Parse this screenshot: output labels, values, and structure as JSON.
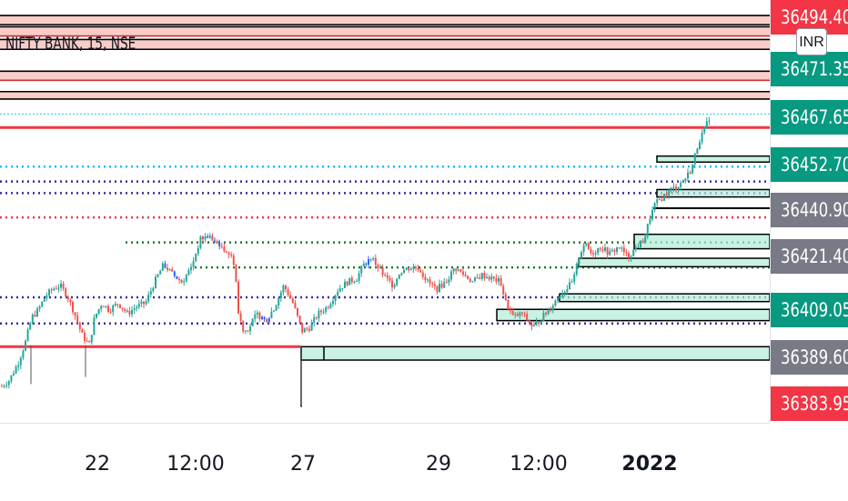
{
  "symbol": "NIFTY BANK, 15, NSE",
  "currency_button": "INR",
  "chart_data": {
    "type": "candlestick",
    "title": "NIFTY BANK, 15, NSE",
    "ylim": [
      36380,
      36500
    ],
    "price_labels": [
      {
        "text": "36494.40",
        "value": 36494.4,
        "color": "#f23645"
      },
      {
        "text": "36471.35",
        "value": 36471.35,
        "color": "#089981"
      },
      {
        "text": "36467.65",
        "value": 36467.65,
        "color": "#089981"
      },
      {
        "text": "36452.70",
        "value": 36452.7,
        "color": "#089981"
      },
      {
        "text": "36440.90",
        "value": 36440.9,
        "color": "#787b86"
      },
      {
        "text": "36421.40",
        "value": 36421.4,
        "color": "#787b86"
      },
      {
        "text": "36409.05",
        "value": 36409.05,
        "color": "#089981"
      },
      {
        "text": "36389.60",
        "value": 36389.6,
        "color": "#787b86"
      },
      {
        "text": "36383.95",
        "value": 36383.95,
        "color": "#f23645"
      }
    ],
    "time_labels": [
      {
        "text": "22",
        "bold": false
      },
      {
        "text": "12:00",
        "bold": false
      },
      {
        "text": "27",
        "bold": false
      },
      {
        "text": "29",
        "bold": false
      },
      {
        "text": "12:00",
        "bold": false
      },
      {
        "text": "2022",
        "bold": true
      }
    ],
    "price_path": [
      [
        0,
        36390
      ],
      [
        10,
        36392
      ],
      [
        20,
        36397
      ],
      [
        28,
        36403
      ],
      [
        35,
        36410
      ],
      [
        42,
        36412
      ],
      [
        50,
        36416
      ],
      [
        58,
        36418
      ],
      [
        66,
        36419
      ],
      [
        74,
        36416
      ],
      [
        82,
        36411
      ],
      [
        90,
        36405
      ],
      [
        98,
        36402
      ],
      [
        104,
        36410
      ],
      [
        112,
        36414
      ],
      [
        120,
        36412
      ],
      [
        130,
        36414
      ],
      [
        140,
        36411
      ],
      [
        150,
        36413
      ],
      [
        160,
        36414
      ],
      [
        170,
        36420
      ],
      [
        180,
        36425
      ],
      [
        190,
        36422
      ],
      [
        200,
        36420
      ],
      [
        210,
        36424
      ],
      [
        220,
        36432
      ],
      [
        228,
        36433
      ],
      [
        236,
        36431
      ],
      [
        244,
        36430
      ],
      [
        252,
        36428
      ],
      [
        258,
        36425
      ],
      [
        262,
        36411
      ],
      [
        268,
        36406
      ],
      [
        274,
        36407
      ],
      [
        282,
        36411
      ],
      [
        292,
        36409
      ],
      [
        302,
        36413
      ],
      [
        312,
        36419
      ],
      [
        322,
        36414
      ],
      [
        332,
        36406
      ],
      [
        340,
        36407
      ],
      [
        350,
        36411
      ],
      [
        360,
        36413
      ],
      [
        372,
        36418
      ],
      [
        382,
        36420
      ],
      [
        392,
        36421
      ],
      [
        400,
        36425
      ],
      [
        408,
        36427
      ],
      [
        416,
        36424
      ],
      [
        424,
        36421
      ],
      [
        432,
        36419
      ],
      [
        440,
        36423
      ],
      [
        450,
        36424
      ],
      [
        460,
        36424
      ],
      [
        470,
        36420
      ],
      [
        480,
        36418
      ],
      [
        490,
        36420
      ],
      [
        500,
        36424
      ],
      [
        510,
        36422
      ],
      [
        520,
        36420
      ],
      [
        530,
        36422
      ],
      [
        540,
        36421
      ],
      [
        550,
        36420
      ],
      [
        556,
        36414
      ],
      [
        564,
        36410
      ],
      [
        574,
        36411
      ],
      [
        586,
        36407
      ],
      [
        596,
        36410
      ],
      [
        606,
        36413
      ],
      [
        614,
        36416
      ],
      [
        622,
        36418
      ],
      [
        630,
        36420
      ],
      [
        636,
        36427
      ],
      [
        642,
        36431
      ],
      [
        650,
        36428
      ],
      [
        660,
        36430
      ],
      [
        670,
        36428
      ],
      [
        680,
        36430
      ],
      [
        690,
        36427
      ],
      [
        700,
        36430
      ],
      [
        708,
        36432
      ],
      [
        714,
        36438
      ],
      [
        720,
        36442
      ],
      [
        728,
        36444
      ],
      [
        736,
        36446
      ],
      [
        744,
        36447
      ],
      [
        752,
        36449
      ],
      [
        760,
        36452
      ],
      [
        768,
        36460
      ],
      [
        774,
        36463
      ],
      [
        780,
        36467
      ]
    ],
    "dotted_levels": [
      {
        "value": 36467.65,
        "color": "#26c6da"
      },
      {
        "value": 36452.7,
        "color": "#29b6f6"
      },
      {
        "value": 36448.5,
        "color": "#3f2aa0"
      },
      {
        "value": 36445.2,
        "color": "#3f2aa0"
      },
      {
        "value": 36438.3,
        "color": "#f23645"
      },
      {
        "value": 36431.2,
        "color": "#1b7a2a"
      },
      {
        "value": 36424.1,
        "color": "#1b7a2a"
      },
      {
        "value": 36415.6,
        "color": "#3f2aa0"
      },
      {
        "value": 36408.2,
        "color": "#3f2aa0"
      }
    ],
    "solid_levels": [
      36463.8,
      36401.6
    ],
    "top_resistance_bands": [
      [
        36493.0,
        36495.6
      ],
      [
        36489.8,
        36492.4
      ],
      [
        36486.0,
        36488.8
      ],
      [
        36477.2,
        36479.8
      ],
      [
        36471.9,
        36474.0
      ]
    ],
    "demand_zones": [
      {
        "start": 331,
        "top": 36401.6,
        "bottom": 36397.8
      },
      {
        "start": 546,
        "top": 36412.2,
        "bottom": 36409.0
      },
      {
        "start": 615,
        "top": 36416.6,
        "bottom": 36414.4
      },
      {
        "start": 636,
        "top": 36426.7,
        "bottom": 36424.3
      },
      {
        "start": 697,
        "top": 36433.5,
        "bottom": 36429.4
      },
      {
        "start": 722,
        "top": 36446.2,
        "bottom": 36444.1
      },
      {
        "start": 722,
        "top": 36455.7,
        "bottom": 36454.0
      }
    ],
    "colors": {
      "up": "#26a69a",
      "down": "#ef5350",
      "highlight": "#2962ff"
    }
  }
}
